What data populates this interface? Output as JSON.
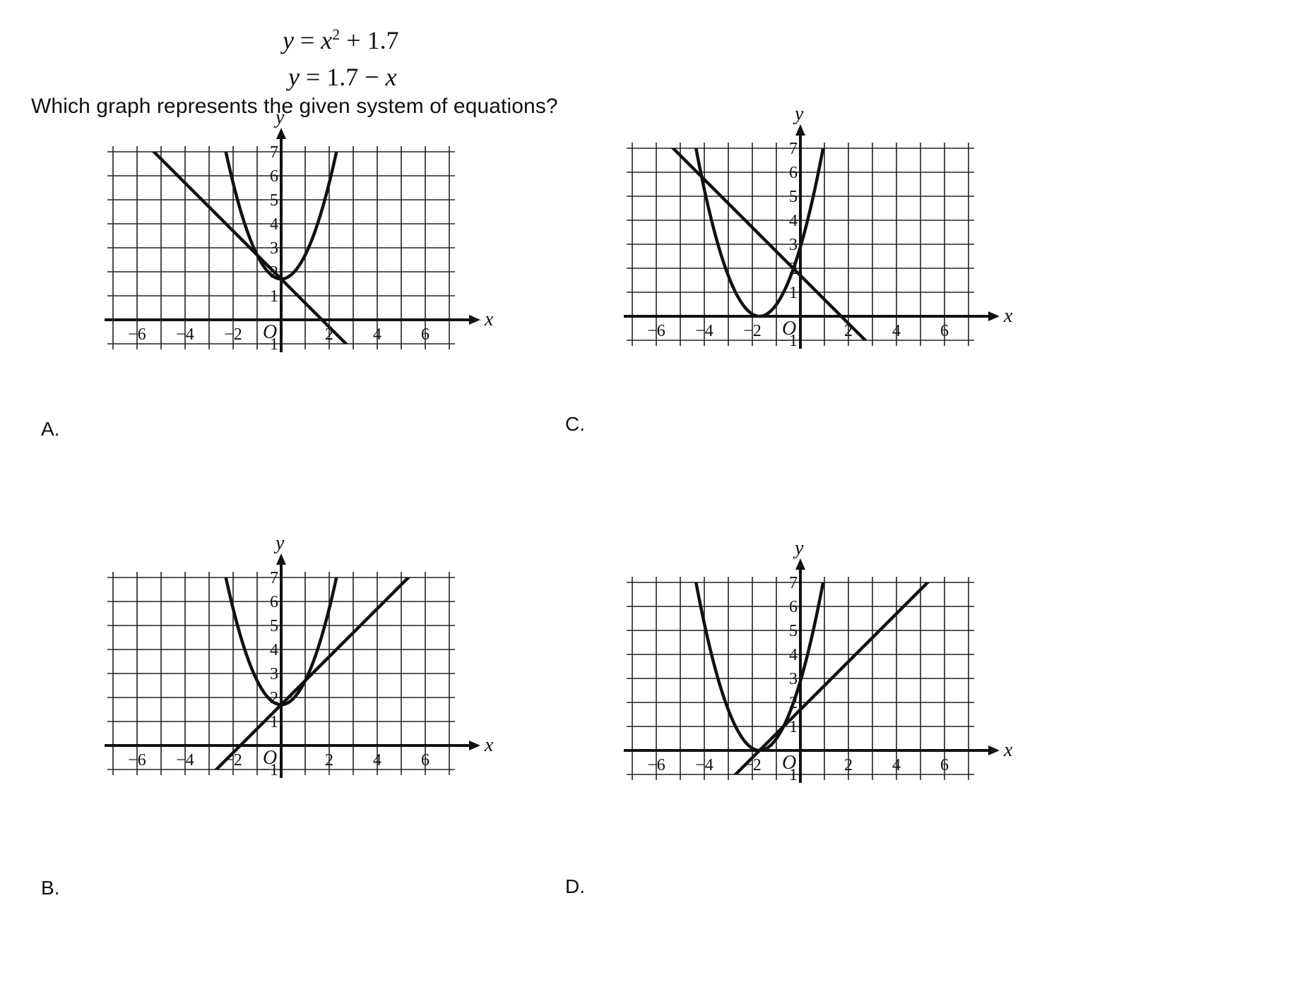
{
  "equations": {
    "eq1": {
      "lhs": "y",
      "eq": " = ",
      "base": "x",
      "exp": "2",
      "rest": " + 1.7"
    },
    "eq2": {
      "text_lhs": "y",
      "text_mid": " = 1.7 − ",
      "text_var": "x"
    }
  },
  "question": "Which graph represents the given system of equations?",
  "choices": [
    {
      "id": "a",
      "label": "A."
    },
    {
      "id": "b",
      "label": "B."
    },
    {
      "id": "c",
      "label": "C."
    },
    {
      "id": "d",
      "label": "D."
    }
  ],
  "axes": {
    "x_letter": "x",
    "y_letter": "y",
    "origin_label": "O",
    "x_ticks": [
      {
        "value": -6,
        "text": "−6"
      },
      {
        "value": -4,
        "text": "−4"
      },
      {
        "value": -2,
        "text": "−2"
      },
      {
        "value": 2,
        "text": "2"
      },
      {
        "value": 4,
        "text": "4"
      },
      {
        "value": 6,
        "text": "6"
      }
    ],
    "y_ticks": [
      {
        "value": 7,
        "text": "7"
      },
      {
        "value": 6,
        "text": "6"
      },
      {
        "value": 5,
        "text": "5"
      },
      {
        "value": 4,
        "text": "4"
      },
      {
        "value": 3,
        "text": "3"
      },
      {
        "value": 2,
        "text": "2"
      },
      {
        "value": 1,
        "text": "1"
      },
      {
        "value": -1,
        "text": "−1"
      }
    ],
    "x_range": [
      -7,
      7
    ],
    "y_range": [
      -1,
      7
    ],
    "grid_step": 1
  },
  "chart_data": [
    {
      "type": "line",
      "choice": "A.",
      "xlabel": "x",
      "ylabel": "y",
      "xlim": [
        -7,
        7
      ],
      "ylim": [
        -1,
        7
      ],
      "grid": true,
      "curves": [
        {
          "kind": "parabola",
          "a": 1,
          "h": 0,
          "k": 1.7
        },
        {
          "kind": "line",
          "slope": -1,
          "intercept": 1.7
        }
      ]
    },
    {
      "type": "line",
      "choice": "B.",
      "xlabel": "x",
      "ylabel": "y",
      "xlim": [
        -7,
        7
      ],
      "ylim": [
        -1,
        7
      ],
      "grid": true,
      "curves": [
        {
          "kind": "parabola",
          "a": 1,
          "h": 0,
          "k": 1.7
        },
        {
          "kind": "line",
          "slope": 1,
          "intercept": 1.7
        }
      ]
    },
    {
      "type": "line",
      "choice": "C.",
      "xlabel": "x",
      "ylabel": "y",
      "xlim": [
        -7,
        7
      ],
      "ylim": [
        -1,
        7
      ],
      "grid": true,
      "curves": [
        {
          "kind": "parabola",
          "a": 1,
          "h": -1.7,
          "k": 0
        },
        {
          "kind": "line",
          "slope": -1,
          "intercept": 1.7
        }
      ]
    },
    {
      "type": "line",
      "choice": "D.",
      "xlabel": "x",
      "ylabel": "y",
      "xlim": [
        -7,
        7
      ],
      "ylim": [
        -1,
        7
      ],
      "grid": true,
      "curves": [
        {
          "kind": "parabola",
          "a": 1,
          "h": -1.7,
          "k": 0
        },
        {
          "kind": "line",
          "slope": 1,
          "intercept": 1.7
        }
      ]
    }
  ]
}
